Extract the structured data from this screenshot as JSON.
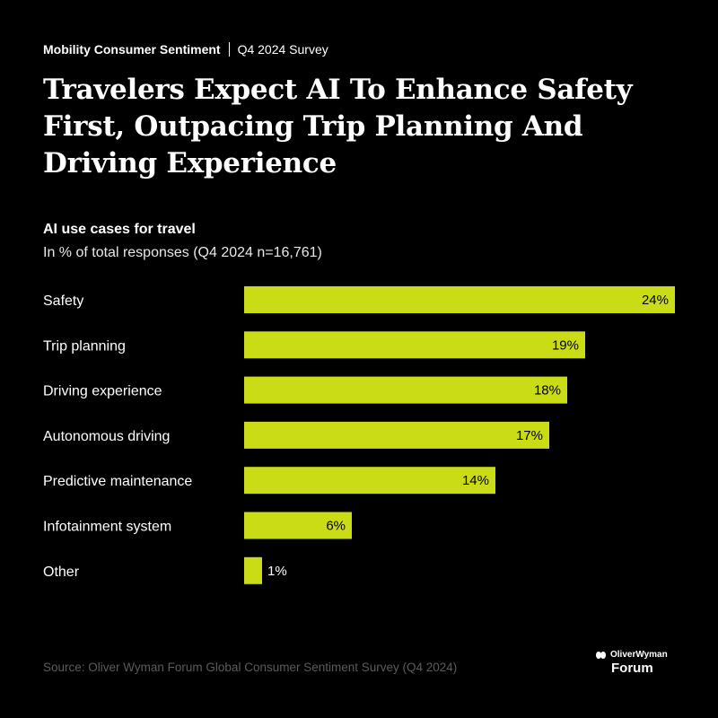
{
  "header": {
    "series": "Mobility Consumer Sentiment",
    "edition": "Q4 2024 Survey",
    "title": "Travelers Expect AI To Enhance Safety First, Outpacing Trip Planning And Driving Experience"
  },
  "chart_data": {
    "type": "bar",
    "orientation": "horizontal",
    "title": "AI use cases for travel",
    "subtitle": "In % of total responses (Q4 2024 n=16,761)",
    "categories": [
      "Safety",
      "Trip planning",
      "Driving experience",
      "Autonomous driving",
      "Predictive maintenance",
      "Infotainment system",
      "Other"
    ],
    "values": [
      24,
      19,
      18,
      17,
      14,
      6,
      1
    ],
    "value_labels": [
      "24%",
      "19%",
      "18%",
      "17%",
      "14%",
      "6%",
      "1%"
    ],
    "xlim": [
      0,
      24
    ],
    "grid": false,
    "legend": "none",
    "bar_color": "#c9dc15"
  },
  "footer": {
    "source": "Source: Oliver Wyman Forum Global Consumer Sentiment Survey (Q4 2024)",
    "logo_line1": "OliverWyman",
    "logo_line2": "Forum"
  },
  "colors": {
    "background": "#000000",
    "text": "#ffffff",
    "accent": "#c9dc15",
    "muted": "#5b5b5b"
  }
}
